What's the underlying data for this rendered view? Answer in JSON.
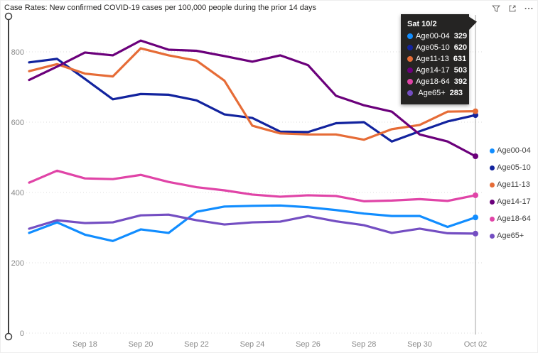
{
  "header": {
    "title": "Case Rates: New confirmed COVID-19 cases per 100,000 people during the prior 14 days"
  },
  "icons": {
    "filter": "filter-icon",
    "focus": "focus-mode-icon",
    "more": "more-options-icon"
  },
  "colors": {
    "age00_04": "#118DFF",
    "age05_10": "#12239E",
    "age11_13": "#E66C37",
    "age14_17": "#6B007B",
    "age18_64": "#E044A7",
    "age65plus": "#744EC2"
  },
  "tooltip": {
    "header": "Sat 10/2",
    "rows": [
      {
        "label": "Age00-04",
        "value": "329",
        "color": "#118DFF"
      },
      {
        "label": "Age05-10",
        "value": "620",
        "color": "#12239E"
      },
      {
        "label": "Age11-13",
        "value": "631",
        "color": "#E66C37"
      },
      {
        "label": "Age14-17",
        "value": "503",
        "color": "#6B007B"
      },
      {
        "label": "Age18-64",
        "value": "392",
        "color": "#E044A7"
      },
      {
        "label": "Age65+",
        "value": "283",
        "color": "#744EC2"
      }
    ]
  },
  "legend": [
    {
      "label": "Age00-04",
      "color": "#118DFF"
    },
    {
      "label": "Age05-10",
      "color": "#12239E"
    },
    {
      "label": "Age11-13",
      "color": "#E66C37"
    },
    {
      "label": "Age14-17",
      "color": "#6B007B"
    },
    {
      "label": "Age18-64",
      "color": "#E044A7"
    },
    {
      "label": "Age65+",
      "color": "#744EC2"
    }
  ],
  "chart_data": {
    "type": "line",
    "title": "Case Rates: New confirmed COVID-19 cases per 100,000 people during the prior 14 days",
    "x": [
      "Sep 16",
      "Sep 17",
      "Sep 18",
      "Sep 19",
      "Sep 20",
      "Sep 21",
      "Sep 22",
      "Sep 23",
      "Sep 24",
      "Sep 25",
      "Sep 26",
      "Sep 27",
      "Sep 28",
      "Sep 29",
      "Sep 30",
      "Oct 01",
      "Oct 02"
    ],
    "x_axis_labels": [
      "Sep 18",
      "Sep 20",
      "Sep 22",
      "Sep 24",
      "Sep 26",
      "Sep 28",
      "Sep 30",
      "Oct 02"
    ],
    "y_ticks": [
      0,
      200,
      400,
      600,
      800
    ],
    "ylim": [
      0,
      905
    ],
    "grid": true,
    "legend_position": "right",
    "hover_index": 16,
    "series": [
      {
        "name": "Age00-04",
        "color": "#118DFF",
        "values": [
          285,
          315,
          280,
          262,
          295,
          285,
          345,
          360,
          362,
          363,
          358,
          350,
          340,
          333,
          333,
          302,
          329
        ]
      },
      {
        "name": "Age05-10",
        "color": "#12239E",
        "values": [
          770,
          780,
          723,
          665,
          680,
          678,
          662,
          622,
          612,
          573,
          572,
          597,
          600,
          545,
          574,
          602,
          620
        ]
      },
      {
        "name": "Age11-13",
        "color": "#E66C37",
        "values": [
          745,
          765,
          738,
          730,
          810,
          790,
          775,
          718,
          590,
          568,
          565,
          565,
          550,
          580,
          592,
          630,
          631
        ]
      },
      {
        "name": "Age14-17",
        "color": "#6B007B",
        "values": [
          720,
          758,
          798,
          790,
          832,
          806,
          803,
          788,
          772,
          790,
          762,
          675,
          648,
          630,
          565,
          545,
          503
        ]
      },
      {
        "name": "Age18-64",
        "color": "#E044A7",
        "values": [
          428,
          462,
          440,
          438,
          450,
          430,
          415,
          406,
          394,
          388,
          392,
          390,
          375,
          377,
          381,
          376,
          392
        ]
      },
      {
        "name": "Age65+",
        "color": "#744EC2",
        "values": [
          297,
          321,
          313,
          315,
          335,
          337,
          321,
          309,
          315,
          317,
          333,
          318,
          307,
          285,
          297,
          284,
          283
        ]
      }
    ]
  }
}
